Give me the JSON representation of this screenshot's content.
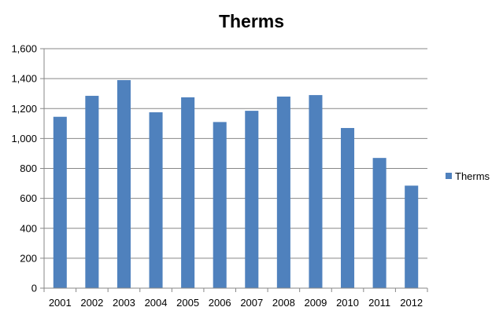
{
  "chart_data": {
    "type": "bar",
    "title": "Therms",
    "categories": [
      "2001",
      "2002",
      "2003",
      "2004",
      "2005",
      "2006",
      "2007",
      "2008",
      "2009",
      "2010",
      "2011",
      "2012"
    ],
    "series": [
      {
        "name": "Therms",
        "values": [
          1145,
          1285,
          1390,
          1175,
          1275,
          1110,
          1185,
          1280,
          1290,
          1070,
          870,
          685
        ],
        "color": "#4F81BD"
      }
    ],
    "ylim": [
      0,
      1600
    ],
    "yticks": [
      0,
      200,
      400,
      600,
      800,
      1000,
      1200,
      1400,
      1600
    ],
    "ytick_labels": [
      "0",
      "200",
      "400",
      "600",
      "800",
      "1,000",
      "1,200",
      "1,400",
      "1,600"
    ],
    "grid": true,
    "legend": "right"
  }
}
